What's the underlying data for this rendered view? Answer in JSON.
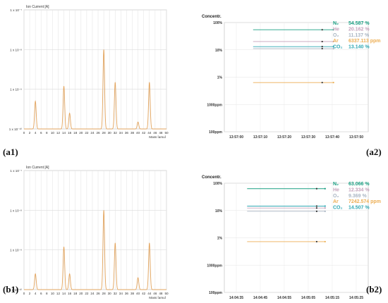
{
  "panel_labels": {
    "a1": "(a1)",
    "a2": "(a2)",
    "b1": "(b1)",
    "b2": "(b2)"
  },
  "chart_data": [
    {
      "id": "a1",
      "type": "line",
      "ylabel": "Ion Current [A]",
      "xlabel": "Mass [amu]",
      "y_scale": "log",
      "ylim": [
        1e-10,
        1e-07
      ],
      "yticks": [
        "1 x 10⁻¹⁰",
        "1 x 10⁻⁹",
        "1 x 10⁻⁸",
        "1 x 10⁻⁷"
      ],
      "xlim": [
        0,
        50
      ],
      "xticks": [
        0,
        2,
        4,
        6,
        8,
        10,
        12,
        14,
        16,
        18,
        20,
        22,
        24,
        26,
        28,
        30,
        32,
        34,
        36,
        38,
        40,
        42,
        44,
        46,
        48,
        50
      ],
      "grid": true,
      "line_color": "#e2a35c",
      "peaks": [
        {
          "mass": 4,
          "value": 5e-10
        },
        {
          "mass": 14,
          "value": 1.2e-09
        },
        {
          "mass": 16,
          "value": 2.5e-10
        },
        {
          "mass": 28,
          "value": 1e-08
        },
        {
          "mass": 32,
          "value": 1.5e-09
        },
        {
          "mass": 40,
          "value": 1.5e-10
        },
        {
          "mass": 44,
          "value": 1.5e-09
        }
      ]
    },
    {
      "id": "a2",
      "type": "line",
      "title": "Concentr.",
      "y_scale": "log",
      "yticks": [
        "100%",
        "10%",
        "1%",
        "1000ppm",
        "100ppm"
      ],
      "yticks_values": [
        100,
        10,
        1,
        0.1,
        0.01
      ],
      "xticks": [
        "13:57:00",
        "13:57:10",
        "13:57:20",
        "13:57:30",
        "13:57:40",
        "13:57:50"
      ],
      "grid": true,
      "start_tick": 0.7,
      "marker_tick": 3.58,
      "end_tick": 4.05,
      "series": [
        {
          "label": "N₂",
          "value": "54.587 %",
          "level": 54.587,
          "color": "#1a9f82"
        },
        {
          "label": "He",
          "value": "20.162 %",
          "level": 20.162,
          "color": "#c4a2bb"
        },
        {
          "label": "O₂",
          "value": "11.137 %",
          "level": 11.137,
          "color": "#aab6c4"
        },
        {
          "label": "Ar",
          "value": "6337.113 ppm",
          "level": 0.6337,
          "color": "#ecae54"
        },
        {
          "label": "CO₂",
          "value": "13.140 %",
          "level": 13.14,
          "color": "#2fa8b4"
        }
      ]
    },
    {
      "id": "b1",
      "type": "line",
      "ylabel": "Ion Current [A]",
      "xlabel": "Mass [amu]",
      "y_scale": "log",
      "ylim": [
        1e-10,
        1e-07
      ],
      "yticks": [
        "1 x 10⁻¹⁰",
        "1 x 10⁻⁹",
        "1 x 10⁻⁸",
        "1 x 10⁻⁷"
      ],
      "xlim": [
        0,
        50
      ],
      "xticks": [
        0,
        2,
        4,
        6,
        8,
        10,
        12,
        14,
        16,
        18,
        20,
        22,
        24,
        26,
        28,
        30,
        32,
        34,
        36,
        38,
        40,
        42,
        44,
        46,
        48,
        50
      ],
      "grid": true,
      "line_color": "#e2a35c",
      "peaks": [
        {
          "mass": 4,
          "value": 2.5e-10
        },
        {
          "mass": 14,
          "value": 1.2e-09
        },
        {
          "mass": 16,
          "value": 2.5e-10
        },
        {
          "mass": 28,
          "value": 1e-08
        },
        {
          "mass": 32,
          "value": 1.5e-09
        },
        {
          "mass": 40,
          "value": 2e-10
        },
        {
          "mass": 44,
          "value": 1.5e-09
        }
      ]
    },
    {
      "id": "b2",
      "type": "line",
      "title": "Concentr.",
      "y_scale": "log",
      "yticks": [
        "100%",
        "10%",
        "1%",
        "1000ppm",
        "100ppm"
      ],
      "yticks_values": [
        100,
        10,
        1,
        0.1,
        0.01
      ],
      "xticks": [
        "14:04:35",
        "14:04:45",
        "14:04:55",
        "14:05:05",
        "14:05:15",
        "14:05:25"
      ],
      "grid": true,
      "start_tick": 0.45,
      "marker_tick": 3.35,
      "end_tick": 3.7,
      "series": [
        {
          "label": "N₂",
          "value": "63.066 %",
          "level": 63.066,
          "color": "#1a9f82"
        },
        {
          "label": "He",
          "value": "12.334 %",
          "level": 12.334,
          "color": "#c4a2bb"
        },
        {
          "label": "O₂",
          "value": "9.369 %",
          "level": 9.369,
          "color": "#aab6c4"
        },
        {
          "label": "Ar",
          "value": "7242.574 ppm",
          "level": 0.7243,
          "color": "#ecae54"
        },
        {
          "label": "CO₂",
          "value": "14.507 %",
          "level": 14.507,
          "color": "#2fa8b4"
        }
      ]
    }
  ]
}
